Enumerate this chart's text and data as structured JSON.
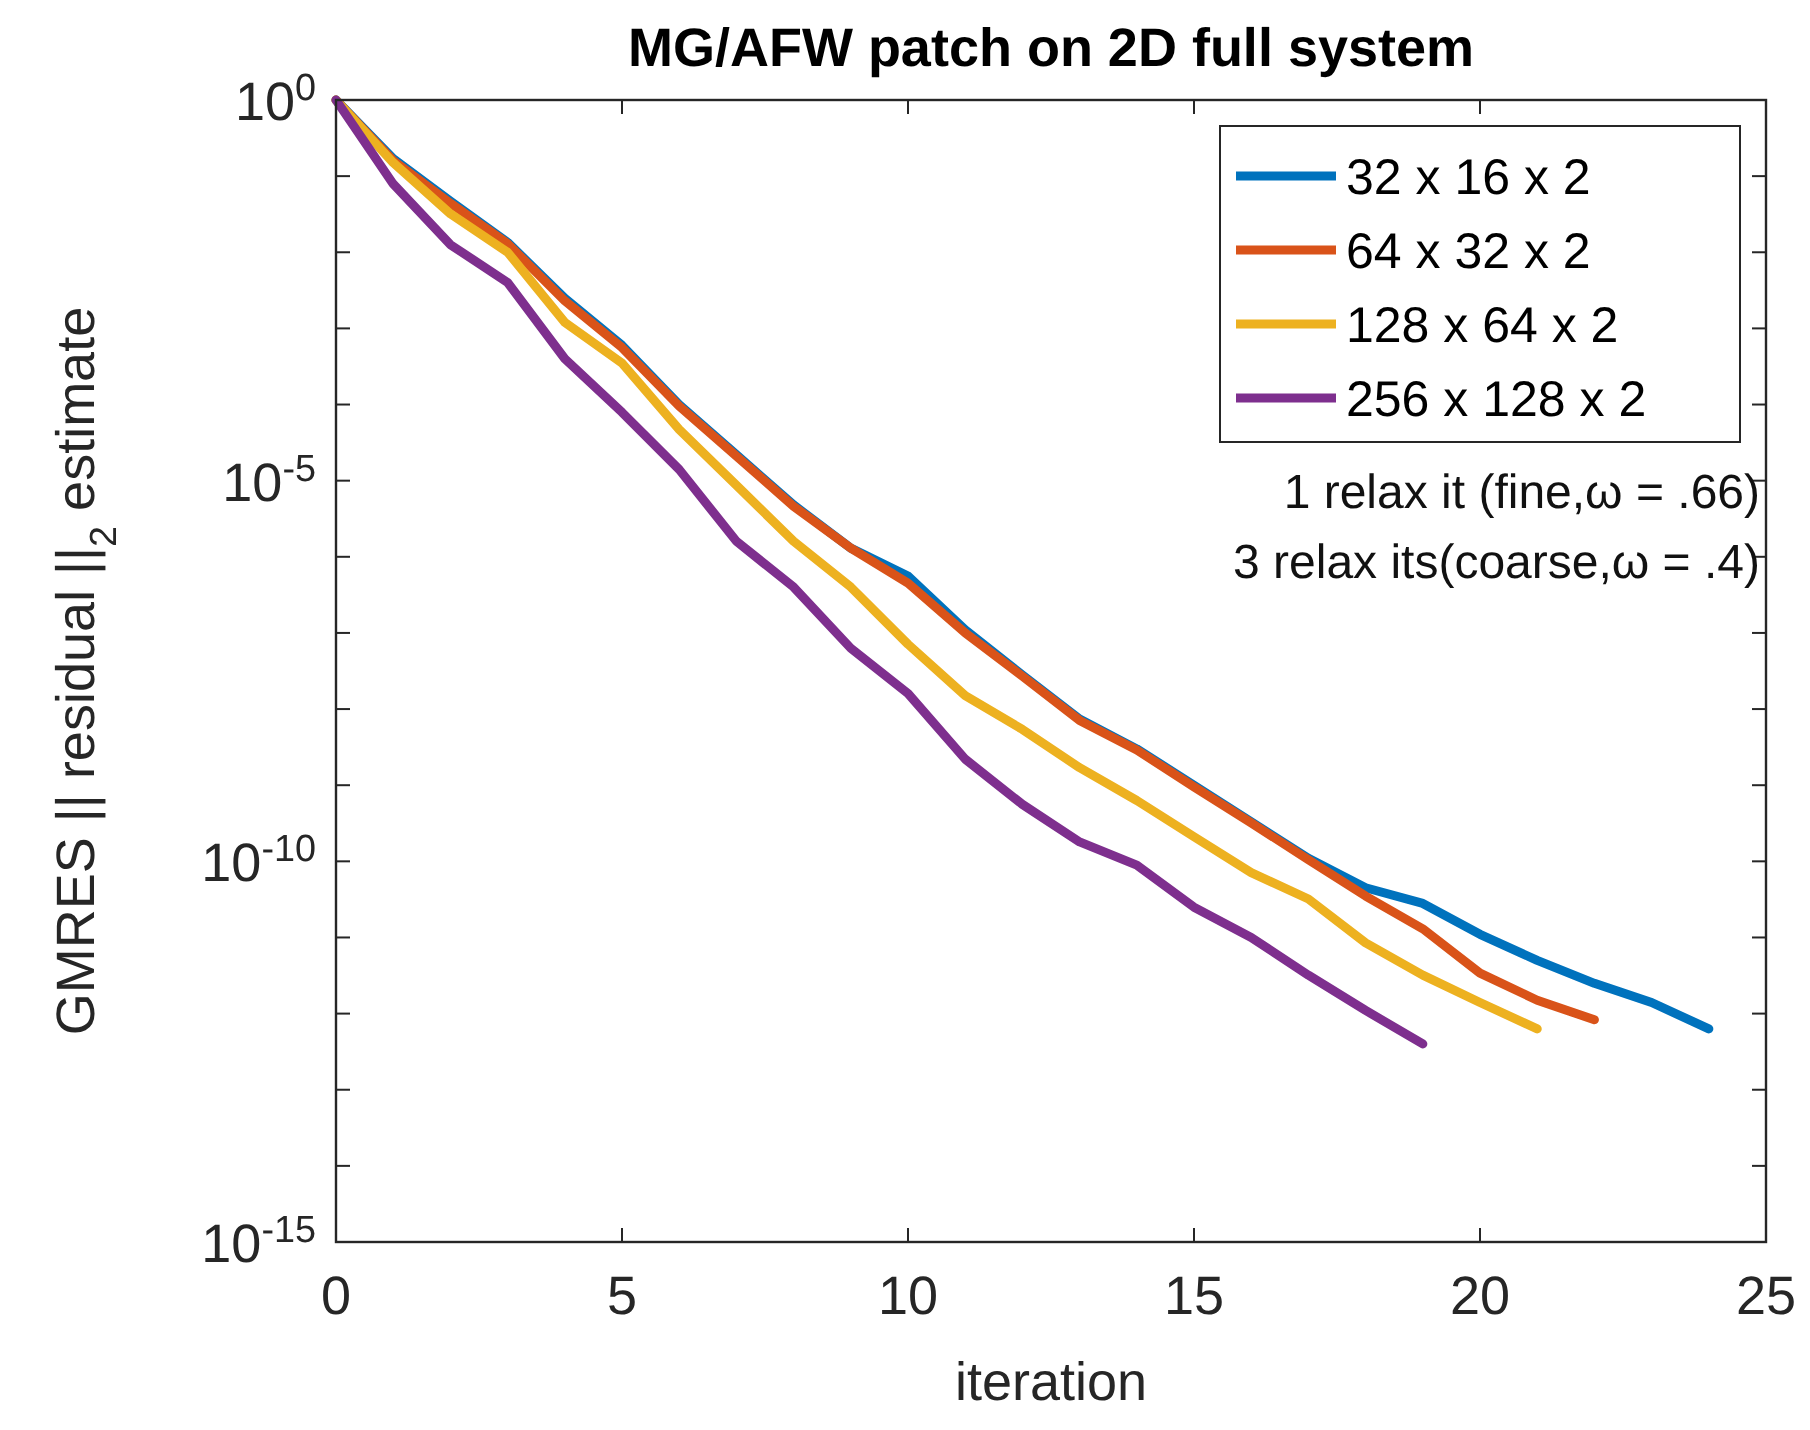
{
  "chart_data": {
    "type": "line",
    "title": "MG/AFW patch on 2D full system",
    "xlabel": "iteration",
    "ylabel": "GMRES || residual ||$_{2}$ estimate",
    "log": "y",
    "grid": false,
    "legend": "top right",
    "line_style": "solid",
    "marker": "none",
    "xlim": [
      0,
      25
    ],
    "xticks": [
      0,
      5,
      10,
      15,
      20,
      25
    ],
    "ylim": [
      1e-15,
      1
    ],
    "yticks": [
      {
        "value": 1,
        "label": "10$^{0}$"
      },
      {
        "value": 0.1,
        "label": null
      },
      {
        "value": 0.01,
        "label": null
      },
      {
        "value": 0.001,
        "label": null
      },
      {
        "value": 0.0001,
        "label": null
      },
      {
        "value": 1e-05,
        "label": "10$^{-5}$"
      },
      {
        "value": 1e-06,
        "label": null
      },
      {
        "value": 1e-07,
        "label": null
      },
      {
        "value": 1e-08,
        "label": null
      },
      {
        "value": 1e-09,
        "label": null
      },
      {
        "value": 1e-10,
        "label": "10$^{-10}$"
      },
      {
        "value": 1e-11,
        "label": null
      },
      {
        "value": 1e-12,
        "label": null
      },
      {
        "value": 1e-13,
        "label": null
      },
      {
        "value": 1e-14,
        "label": null
      },
      {
        "value": 1e-15,
        "label": "10$^{-15}$"
      }
    ],
    "annotations": [
      "1 relax it (fine,ω = .66)",
      "3 relax its(coarse,ω = .4)"
    ],
    "series": [
      {
        "name": "32 x 16 x 2",
        "color": "#0072bd",
        "x": [
          0,
          1,
          2,
          3,
          4,
          5,
          6,
          7,
          8,
          9,
          10,
          11,
          12,
          13,
          14,
          15,
          16,
          17,
          18,
          19,
          20,
          21,
          22,
          23,
          24
        ],
        "values": [
          1,
          0.17,
          0.047,
          0.0135,
          0.0025,
          0.0006,
          0.0001,
          2.2e-05,
          4.8e-06,
          1.3e-06,
          5.6e-07,
          1.1e-07,
          2.8e-08,
          7.4e-09,
          3e-09,
          1e-09,
          3.3e-10,
          1.1e-10,
          4.5e-11,
          2.8e-11,
          1.1e-11,
          5e-12,
          2.5e-12,
          1.4e-12,
          6.3e-13
        ]
      },
      {
        "name": "64 x 32 x 2",
        "color": "#d95319",
        "x": [
          0,
          1,
          2,
          3,
          4,
          5,
          6,
          7,
          8,
          9,
          10,
          11,
          12,
          13,
          14,
          15,
          16,
          17,
          18,
          19,
          20,
          21,
          22
        ],
        "values": [
          1,
          0.16,
          0.044,
          0.013,
          0.0023,
          0.00056,
          9.5e-05,
          2.1e-05,
          4.6e-06,
          1.3e-06,
          4.5e-07,
          1e-07,
          2.7e-08,
          7.1e-09,
          2.9e-09,
          9.5e-10,
          3.2e-10,
          1.05e-10,
          3.5e-11,
          1.3e-11,
          3.4e-12,
          1.5e-12,
          8.3e-13
        ]
      },
      {
        "name": "128 x 64 x 2",
        "color": "#edb120",
        "x": [
          0,
          1,
          2,
          3,
          4,
          5,
          6,
          7,
          8,
          9,
          10,
          11,
          12,
          13,
          14,
          15,
          16,
          17,
          18,
          19,
          20,
          21
        ],
        "values": [
          1,
          0.15,
          0.032,
          0.01,
          0.0012,
          0.00035,
          4.7e-05,
          8.7e-06,
          1.6e-06,
          4e-07,
          7.1e-08,
          1.5e-08,
          5.4e-09,
          1.7e-09,
          6.3e-10,
          2.1e-10,
          7.1e-11,
          3.2e-11,
          8.5e-12,
          3.2e-12,
          1.4e-12,
          6.3e-13
        ]
      },
      {
        "name": "256 x 128 x 2",
        "color": "#7e2f8e",
        "x": [
          0,
          1,
          2,
          3,
          4,
          5,
          6,
          7,
          8,
          9,
          10,
          11,
          12,
          13,
          14,
          15,
          16,
          17,
          18,
          19
        ],
        "values": [
          1,
          0.079,
          0.0126,
          0.004,
          0.0004,
          7.9e-05,
          1.4e-05,
          1.6e-06,
          4e-07,
          6.3e-08,
          1.6e-08,
          2.2e-09,
          5.6e-10,
          1.8e-10,
          8.9e-11,
          2.5e-11,
          1e-11,
          3.2e-12,
          1.1e-12,
          4e-13
        ]
      }
    ]
  }
}
